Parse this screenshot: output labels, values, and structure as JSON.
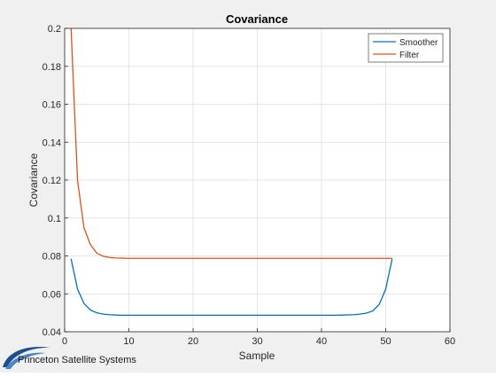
{
  "chart_data": {
    "type": "line",
    "title": "Covariance",
    "xlabel": "Sample",
    "ylabel": "Covariance",
    "xlim": [
      0,
      60
    ],
    "ylim": [
      0.04,
      0.2
    ],
    "xticks": [
      0,
      10,
      20,
      30,
      40,
      50,
      60
    ],
    "yticks": [
      0.04,
      0.06,
      0.08,
      0.1,
      0.12,
      0.14,
      0.16,
      0.18,
      0.2
    ],
    "xtick_labels": [
      "0",
      "10",
      "20",
      "30",
      "40",
      "50",
      "60"
    ],
    "ytick_labels": [
      "0.04",
      "0.06",
      "0.08",
      "0.1",
      "0.12",
      "0.14",
      "0.16",
      "0.18",
      "0.2"
    ],
    "grid": true,
    "legend_position": "top-right",
    "series": [
      {
        "name": "Smoother",
        "color": "#0072BD",
        "x": [
          1,
          2,
          3,
          4,
          5,
          6,
          7,
          8,
          9,
          10,
          11,
          12,
          13,
          14,
          15,
          16,
          17,
          18,
          19,
          20,
          21,
          22,
          23,
          24,
          25,
          26,
          27,
          28,
          29,
          30,
          31,
          32,
          33,
          34,
          35,
          36,
          37,
          38,
          39,
          40,
          41,
          42,
          43,
          44,
          45,
          46,
          47,
          48,
          49,
          50,
          51
        ],
        "values": [
          0.0785,
          0.0625,
          0.055,
          0.0515,
          0.05,
          0.0493,
          0.049,
          0.0488,
          0.0487,
          0.0487,
          0.0487,
          0.0487,
          0.0487,
          0.0487,
          0.0487,
          0.0487,
          0.0487,
          0.0487,
          0.0487,
          0.0487,
          0.0487,
          0.0487,
          0.0487,
          0.0487,
          0.0487,
          0.0487,
          0.0487,
          0.0487,
          0.0487,
          0.0487,
          0.0487,
          0.0487,
          0.0487,
          0.0487,
          0.0487,
          0.0487,
          0.0487,
          0.0487,
          0.0487,
          0.0487,
          0.0487,
          0.0487,
          0.0488,
          0.0489,
          0.049,
          0.0493,
          0.0498,
          0.051,
          0.0545,
          0.0625,
          0.0785
        ]
      },
      {
        "name": "Filter",
        "color": "#D95319",
        "x": [
          1,
          2,
          3,
          4,
          5,
          6,
          7,
          8,
          9,
          10,
          11,
          12,
          13,
          14,
          15,
          16,
          17,
          18,
          19,
          20,
          21,
          22,
          23,
          24,
          25,
          26,
          27,
          28,
          29,
          30,
          31,
          32,
          33,
          34,
          35,
          36,
          37,
          38,
          39,
          40,
          41,
          42,
          43,
          44,
          45,
          46,
          47,
          48,
          49,
          50,
          51
        ],
        "values": [
          0.2,
          0.12,
          0.095,
          0.086,
          0.0815,
          0.0798,
          0.0792,
          0.0789,
          0.0788,
          0.0787,
          0.0787,
          0.0787,
          0.0787,
          0.0787,
          0.0787,
          0.0787,
          0.0787,
          0.0787,
          0.0787,
          0.0787,
          0.0787,
          0.0787,
          0.0787,
          0.0787,
          0.0787,
          0.0787,
          0.0787,
          0.0787,
          0.0787,
          0.0787,
          0.0787,
          0.0787,
          0.0787,
          0.0787,
          0.0787,
          0.0787,
          0.0787,
          0.0787,
          0.0787,
          0.0787,
          0.0787,
          0.0787,
          0.0787,
          0.0787,
          0.0787,
          0.0787,
          0.0787,
          0.0787,
          0.0787,
          0.0787,
          0.0787
        ]
      }
    ]
  },
  "logo": {
    "text": "Princeton Satellite Systems",
    "color": "#1f4e8c"
  }
}
